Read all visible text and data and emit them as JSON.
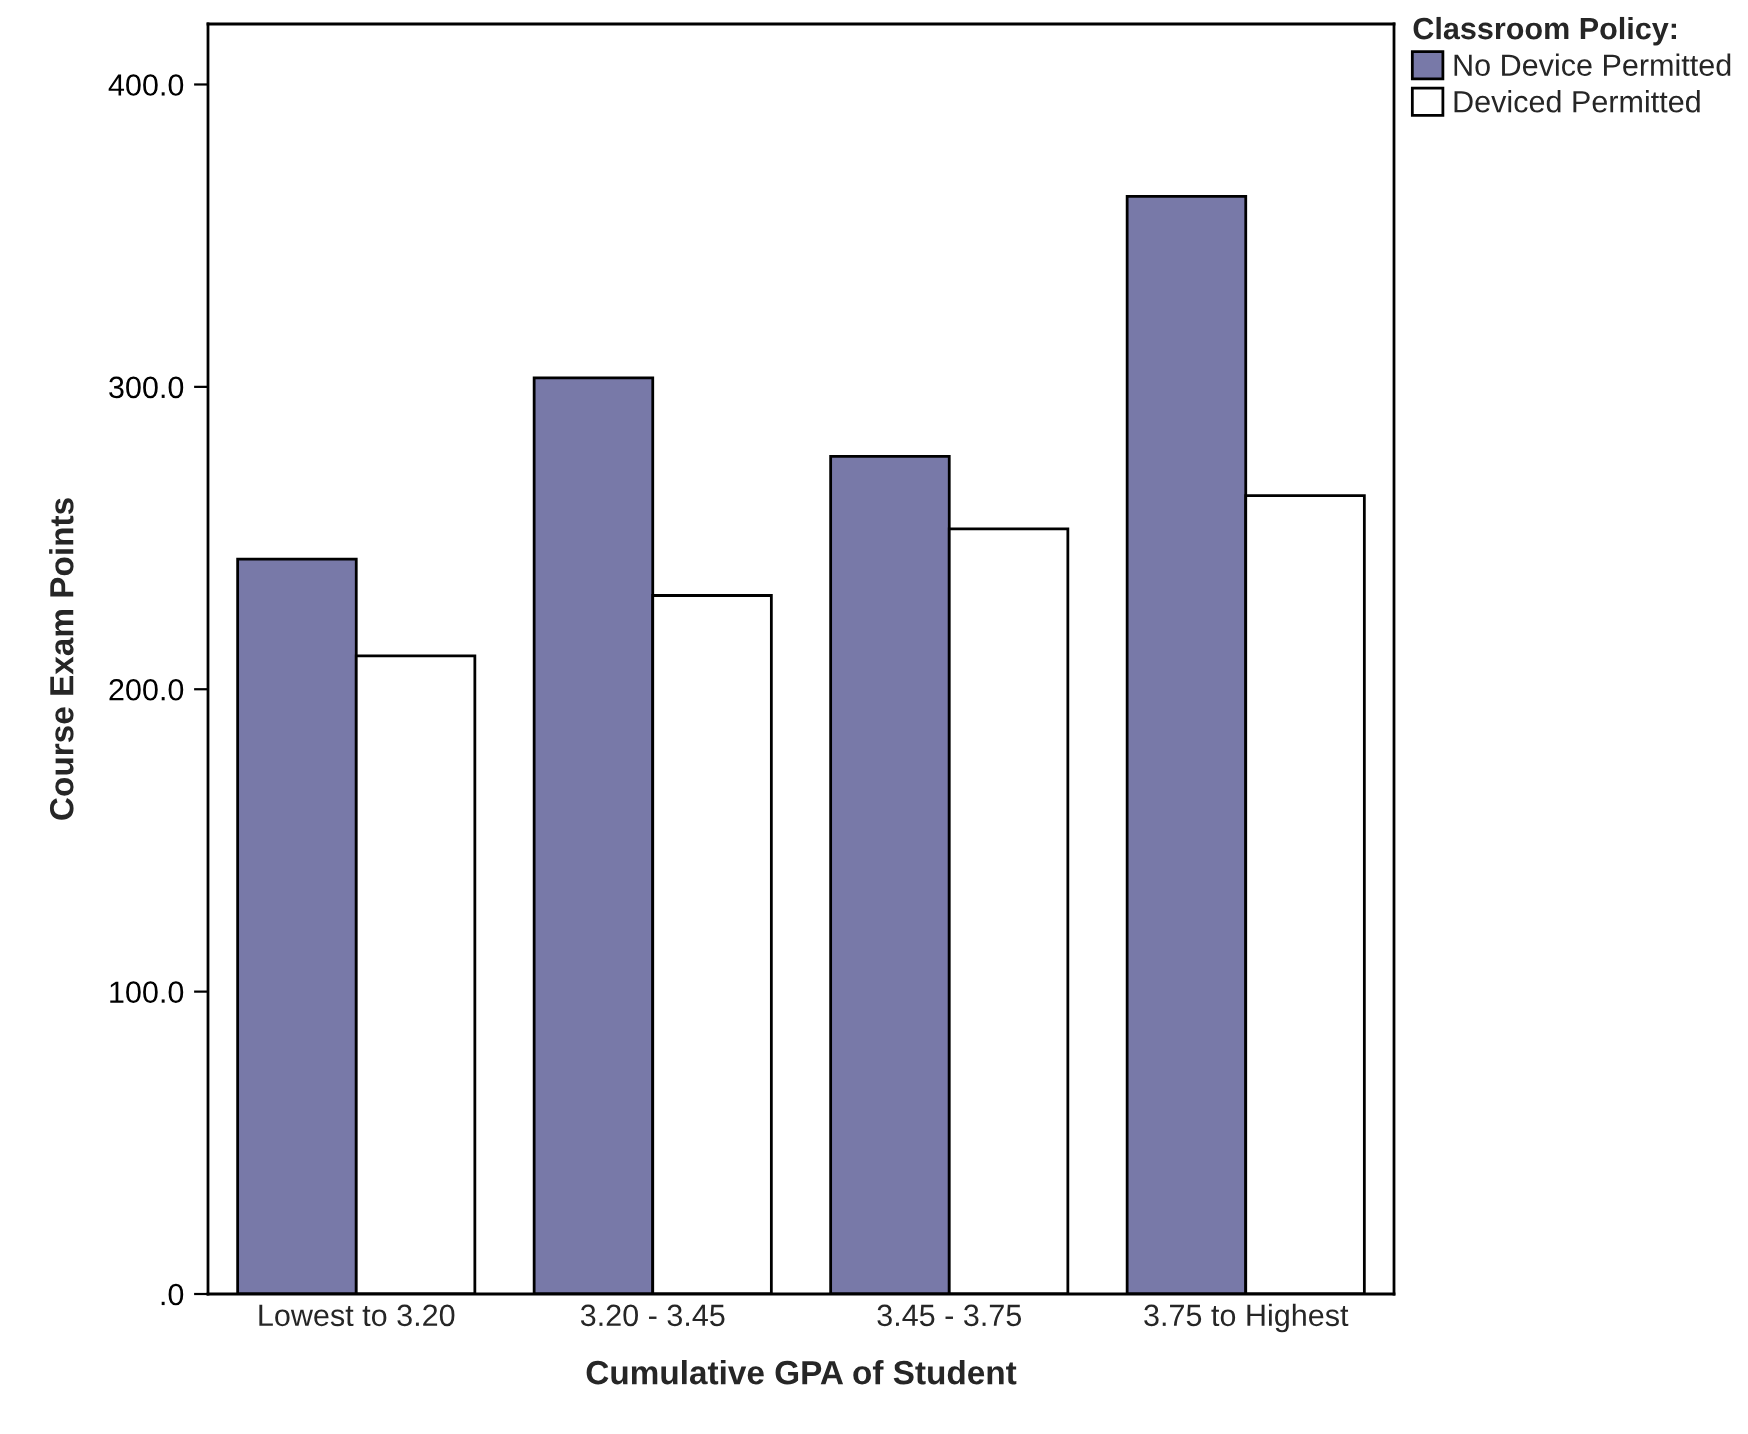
{
  "chart_data": {
    "type": "bar",
    "xlabel": "Cumulative GPA of Student",
    "ylabel": "Course Exam Points",
    "legend_title": "Classroom Policy:",
    "legend": "top right",
    "categories": [
      "Lowest to 3.20",
      "3.20 - 3.45",
      "3.45 - 3.75",
      "3.75 to Highest"
    ],
    "series": [
      {
        "name": "No Device Permitted",
        "color": "#7879a8",
        "values": [
          243,
          303,
          277,
          363
        ]
      },
      {
        "name": "Deviced Permitted",
        "color": "#ffffff",
        "values": [
          211,
          231,
          253,
          264
        ]
      }
    ],
    "ylim": [
      0,
      420
    ],
    "yticks": [
      {
        "value": 0,
        "label": ".0"
      },
      {
        "value": 100,
        "label": "100.0"
      },
      {
        "value": 200,
        "label": "200.0"
      },
      {
        "value": 300,
        "label": "300.0"
      },
      {
        "value": 400,
        "label": "400.0"
      }
    ],
    "grid": false
  }
}
